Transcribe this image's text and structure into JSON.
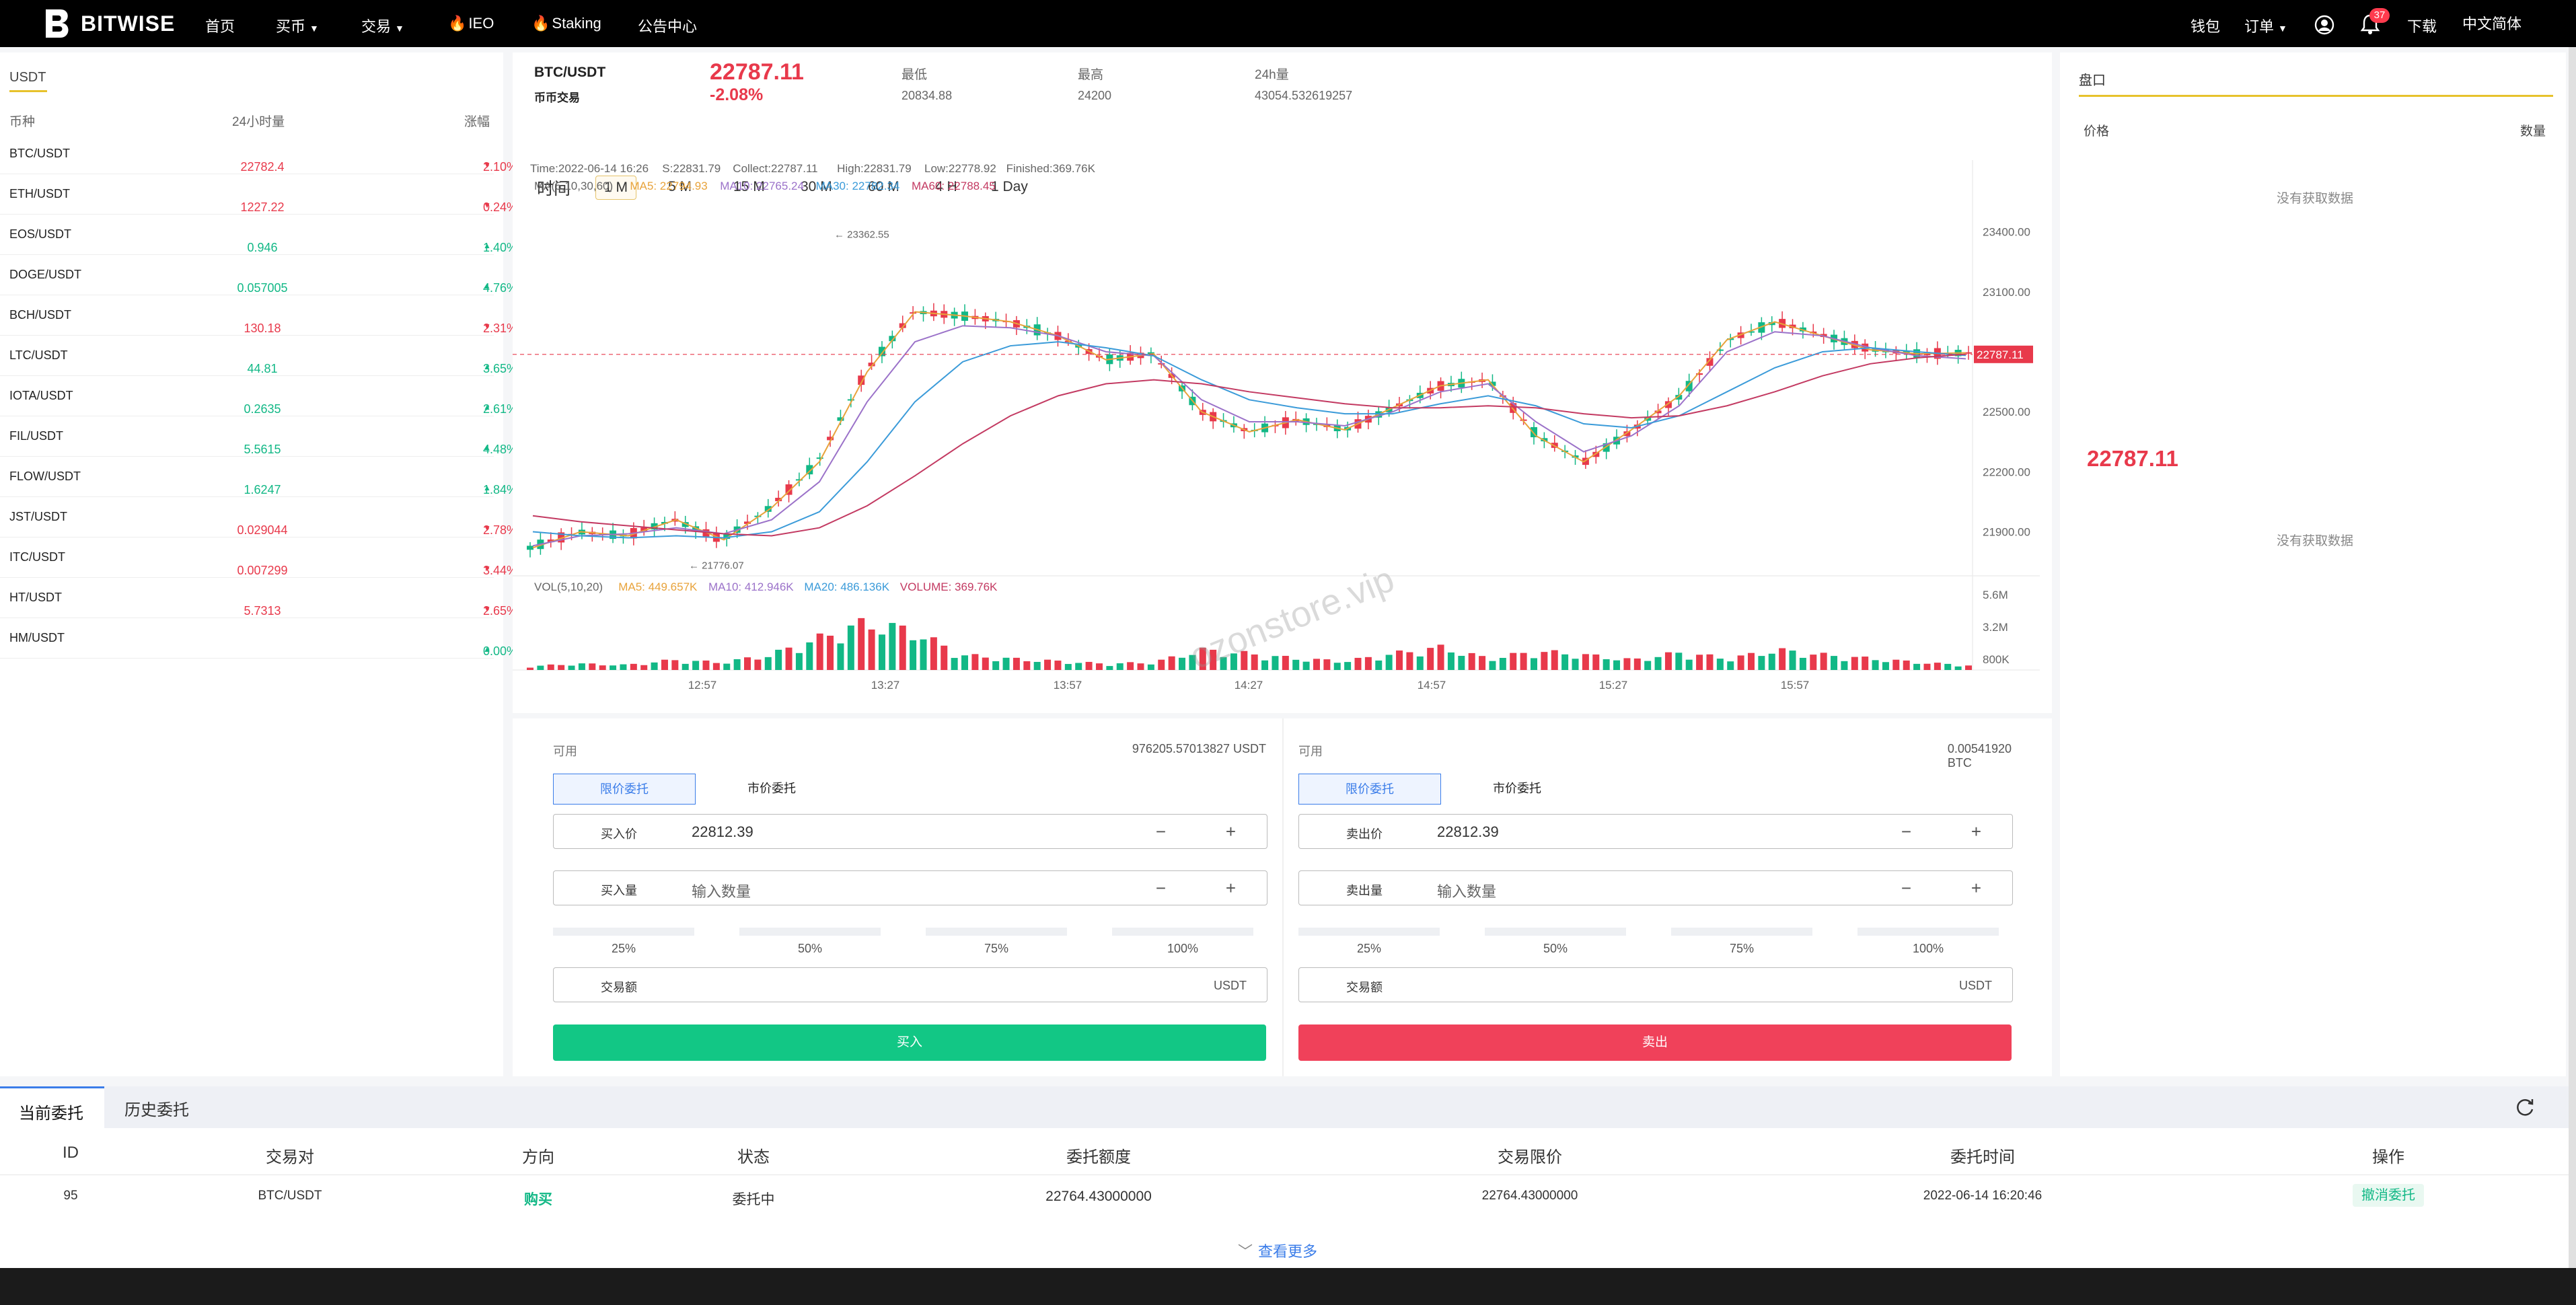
{
  "header": {
    "brand": "BITWISE",
    "nav": [
      "首页",
      "买币",
      "交易",
      "IEO",
      "Staking",
      "公告中心"
    ],
    "right": {
      "wallet": "钱包",
      "orders": "订单",
      "download": "下载",
      "language": "中文简体",
      "notif_count": "37"
    }
  },
  "market": {
    "tab": "USDT",
    "columns": [
      "币种",
      "24小时量",
      "涨幅"
    ],
    "rows": [
      {
        "pair": "BTC/USDT",
        "volume": "22782.4",
        "change": "2.10%",
        "dir": "down"
      },
      {
        "pair": "ETH/USDT",
        "volume": "1227.22",
        "change": "0.24%",
        "dir": "down"
      },
      {
        "pair": "EOS/USDT",
        "volume": "0.946",
        "change": "1.40%",
        "dir": "up"
      },
      {
        "pair": "DOGE/USDT",
        "volume": "0.057005",
        "change": "4.76%",
        "dir": "up"
      },
      {
        "pair": "BCH/USDT",
        "volume": "130.18",
        "change": "2.31%",
        "dir": "down"
      },
      {
        "pair": "LTC/USDT",
        "volume": "44.81",
        "change": "3.65%",
        "dir": "up"
      },
      {
        "pair": "IOTA/USDT",
        "volume": "0.2635",
        "change": "2.61%",
        "dir": "up"
      },
      {
        "pair": "FIL/USDT",
        "volume": "5.5615",
        "change": "4.48%",
        "dir": "up"
      },
      {
        "pair": "FLOW/USDT",
        "volume": "1.6247",
        "change": "1.84%",
        "dir": "up"
      },
      {
        "pair": "JST/USDT",
        "volume": "0.029044",
        "change": "2.78%",
        "dir": "down"
      },
      {
        "pair": "ITC/USDT",
        "volume": "0.007299",
        "change": "3.44%",
        "dir": "down"
      },
      {
        "pair": "HT/USDT",
        "volume": "5.7313",
        "change": "2.65%",
        "dir": "down"
      },
      {
        "pair": "HM/USDT",
        "volume": "",
        "change": "0.00%",
        "dir": "up"
      }
    ]
  },
  "ticker": {
    "pair": "BTC/USDT",
    "sub": "币币交易",
    "price": "22787.11",
    "change": "-2.08%",
    "low_label": "最低",
    "low": "20834.88",
    "high_label": "最高",
    "high": "24200",
    "vol_label": "24h量",
    "vol": "43054.532619257"
  },
  "chart": {
    "timeframes": [
      "时间",
      "1 M",
      "5 M",
      "15 M",
      "30 M",
      "60 M",
      "4 H",
      "1 Day"
    ],
    "active": "1 M",
    "info": {
      "time": "Time:2022-06-14 16:26",
      "s": "S:22831.79",
      "collect": "Collect:22787.11",
      "high": "High:22831.79",
      "low": "Low:22778.92",
      "finished": "Finished:369.76K"
    },
    "ma": {
      "label": "MA(5,10,30,60)",
      "ma5": "MA5: 22794.93",
      "ma10": "MA10: 22765.24",
      "ma30": "MA30: 22782.34",
      "ma60": "MA60: 22788.45"
    },
    "vol": {
      "label": "VOL(5,10,20)",
      "ma5": "MA5: 449.657K",
      "ma10": "MA10: 412.946K",
      "ma20": "MA20: 486.136K",
      "volume": "VOLUME: 369.76K"
    },
    "current_label": "22787.11",
    "max_label": "23362.55",
    "min_label": "21776.07",
    "colors": {
      "up": "#12b886",
      "down": "#e8394b",
      "ma5": "#e8a33b",
      "ma10": "#9b72c9",
      "ma30": "#3b9bd9",
      "ma60": "#c33a62"
    }
  },
  "chart_data": {
    "type": "line",
    "title": "",
    "xlabel": "",
    "ylabel": "",
    "x_ticks": [
      "12:57",
      "13:27",
      "13:57",
      "14:27",
      "14:57",
      "15:27",
      "15:57"
    ],
    "y_ticks": [
      "23400.00",
      "23100.00",
      "22800.00",
      "22500.00",
      "22200.00",
      "21900.00"
    ],
    "vol_ticks": [
      "5.6M",
      "3.2M",
      "800K"
    ],
    "ylim": [
      21700,
      23550
    ],
    "series": [
      {
        "name": "MA5",
        "values": [
          21820,
          21900,
          21880,
          21960,
          21860,
          22020,
          22250,
          22700,
          23000,
          22980,
          22950,
          22880,
          22760,
          22790,
          22500,
          22400,
          22460,
          22410,
          22520,
          22630,
          22660,
          22380,
          22250,
          22410,
          22580,
          22860,
          22950,
          22880,
          22810,
          22790,
          22795
        ]
      },
      {
        "name": "MA10",
        "values": [
          21830,
          21880,
          21890,
          21920,
          21890,
          21960,
          22150,
          22550,
          22850,
          22930,
          22920,
          22880,
          22800,
          22780,
          22560,
          22450,
          22450,
          22430,
          22500,
          22600,
          22640,
          22450,
          22300,
          22380,
          22530,
          22800,
          22900,
          22880,
          22820,
          22780,
          22765
        ]
      },
      {
        "name": "MA30",
        "values": [
          21900,
          21880,
          21870,
          21880,
          21870,
          21900,
          22000,
          22250,
          22550,
          22750,
          22830,
          22850,
          22820,
          22780,
          22660,
          22560,
          22520,
          22490,
          22490,
          22540,
          22580,
          22530,
          22440,
          22420,
          22480,
          22600,
          22720,
          22800,
          22820,
          22800,
          22782
        ]
      },
      {
        "name": "MA60",
        "values": [
          21980,
          21950,
          21930,
          21910,
          21890,
          21880,
          21920,
          22030,
          22180,
          22340,
          22480,
          22580,
          22640,
          22660,
          22640,
          22600,
          22570,
          22540,
          22520,
          22520,
          22530,
          22520,
          22490,
          22470,
          22480,
          22530,
          22600,
          22680,
          22740,
          22770,
          22788
        ]
      }
    ],
    "volume_values": [
      300,
      500,
      400,
      800,
      600,
      1200,
      2500,
      3800,
      3100,
      1200,
      900,
      700,
      500,
      600,
      1600,
      1300,
      900,
      700,
      1300,
      1800,
      900,
      1500,
      1200,
      800,
      1400,
      900,
      1600,
      1200,
      900,
      600,
      370
    ]
  },
  "trade": {
    "avail_label": "可用",
    "buy": {
      "avail": "976205.57013827 USDT",
      "price_label": "买入价",
      "price": "22812.39",
      "amount_label": "买入量",
      "amount_placeholder": "输入数量",
      "total_label": "交易额",
      "unit": "USDT",
      "button": "买入"
    },
    "sell": {
      "avail": "0.00541920 BTC",
      "price_label": "卖出价",
      "price": "22812.39",
      "amount_label": "卖出量",
      "amount_placeholder": "输入数量",
      "total_label": "交易额",
      "unit": "USDT",
      "button": "卖出"
    },
    "modes": [
      "限价委托",
      "市价委托"
    ],
    "percents": [
      "25%",
      "50%",
      "75%",
      "100%"
    ],
    "minus": "−",
    "plus": "+"
  },
  "orderbook": {
    "title": "盘口",
    "price_label": "价格",
    "qty_label": "数量",
    "empty": "没有获取数据",
    "mid_price": "22787.11"
  },
  "orders": {
    "tabs": [
      "当前委托",
      "历史委托"
    ],
    "columns": [
      "ID",
      "交易对",
      "方向",
      "状态",
      "委托额度",
      "交易限价",
      "委托时间",
      "操作"
    ],
    "rows": [
      {
        "id": "95",
        "pair": "BTC/USDT",
        "side": "购买",
        "status": "委托中",
        "amount": "22764.43000000",
        "limit": "22764.43000000",
        "time": "2022-06-14 16:20:46",
        "action": "撤消委托"
      }
    ],
    "more": "查看更多"
  },
  "watermark": "ozonstore.vip"
}
